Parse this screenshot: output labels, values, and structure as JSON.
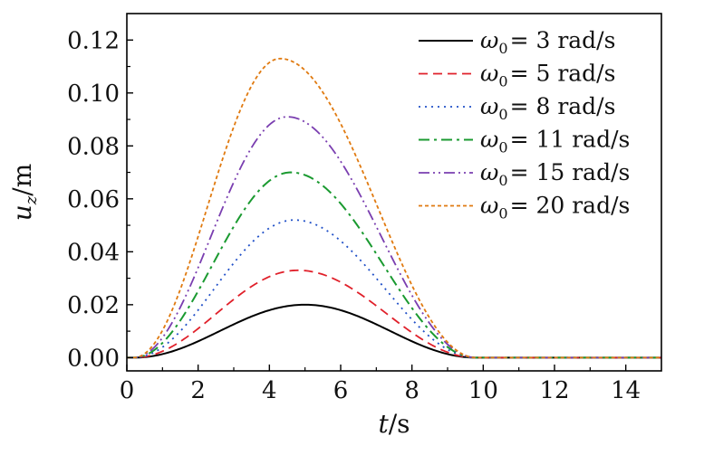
{
  "chart_data": {
    "type": "line",
    "title": "",
    "xlabel": "t/s",
    "ylabel": "u_z/m",
    "xlabel_parts": {
      "var": "t",
      "unit": "/s"
    },
    "ylabel_parts": {
      "var": "u",
      "sub": "z",
      "unit": "/m"
    },
    "xlim": [
      0,
      15
    ],
    "ylim": [
      -0.005,
      0.13
    ],
    "xticks": [
      0,
      2,
      4,
      6,
      8,
      10,
      12,
      14
    ],
    "xtick_labels": [
      "0",
      "2",
      "4",
      "6",
      "8",
      "10",
      "12",
      "14"
    ],
    "yticks": [
      0.0,
      0.02,
      0.04,
      0.06,
      0.08,
      0.1,
      0.12
    ],
    "ytick_labels": [
      "0.00",
      "0.02",
      "0.04",
      "0.06",
      "0.08",
      "0.10",
      "0.12"
    ],
    "grid": false,
    "legend_position": "top-right",
    "curve_window": {
      "t_start": 0.2,
      "t_end": 9.8
    },
    "series": [
      {
        "name": "ω0 = 3 rad/s",
        "symbol": "ω",
        "sub": "0",
        "value_text": "= 3 rad/s",
        "peak": 0.02,
        "peak_t": 5.0,
        "color": "#000000",
        "dash": "solid",
        "width": 2.0
      },
      {
        "name": "ω0 = 5 rad/s",
        "symbol": "ω",
        "sub": "0",
        "value_text": "= 5 rad/s",
        "peak": 0.033,
        "peak_t": 4.8,
        "color": "#e0202a",
        "dash": "dash",
        "width": 1.8
      },
      {
        "name": "ω0 = 8 rad/s",
        "symbol": "ω",
        "sub": "0",
        "value_text": "= 8 rad/s",
        "peak": 0.052,
        "peak_t": 4.7,
        "color": "#2050c8",
        "dash": "dot",
        "width": 1.8
      },
      {
        "name": "ω0 = 11 rad/s",
        "symbol": "ω",
        "sub": "0",
        "value_text": "= 11 rad/s",
        "peak": 0.07,
        "peak_t": 4.6,
        "color": "#1a9a30",
        "dash": "dashdot",
        "width": 2.0
      },
      {
        "name": "ω0 = 15 rad/s",
        "symbol": "ω",
        "sub": "0",
        "value_text": "= 15 rad/s",
        "peak": 0.091,
        "peak_t": 4.5,
        "color": "#7a3eb0",
        "dash": "dashdotdot",
        "width": 1.8
      },
      {
        "name": "ω0 = 20 rad/s",
        "symbol": "ω",
        "sub": "0",
        "value_text": "= 20 rad/s",
        "peak": 0.113,
        "peak_t": 4.3,
        "color": "#e07a10",
        "dash": "shortdash",
        "width": 1.8
      }
    ]
  }
}
